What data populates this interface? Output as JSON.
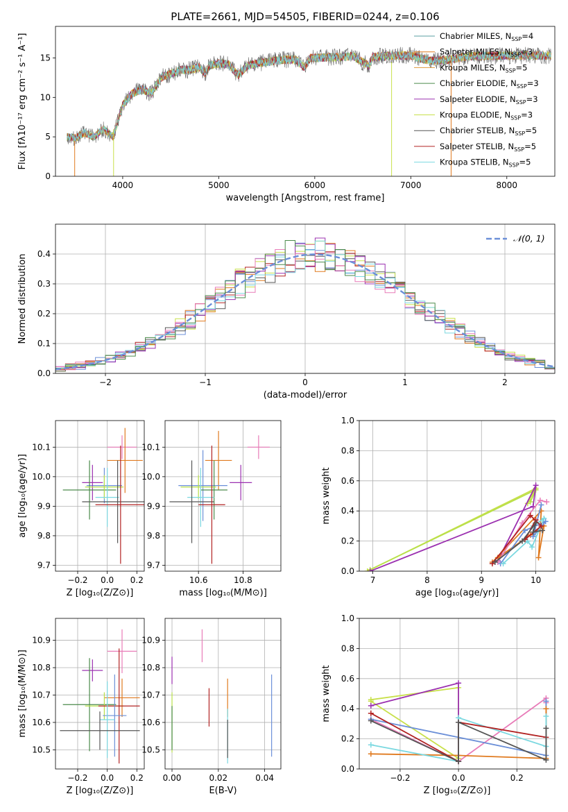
{
  "title": "PLATE=2661, MJD=54505, FIBERID=0244, z=0.106",
  "colors": {
    "Chabrier MILES": "#5a9fa0",
    "Salpeter MILES": "#e07a1f",
    "Kroupa MILES": "#e09a3a",
    "Chabrier ELODIE": "#4a8a4a",
    "Salpeter ELODIE": "#9b30b0",
    "Kroupa ELODIE": "#c8e04a",
    "Chabrier STELIB": "#555555",
    "Salpeter STELIB": "#b22222",
    "Kroupa STELIB": "#7ad8e0",
    "blue": "#6b8fd8",
    "pink": "#e87bb8",
    "orange": "#e07a1f",
    "purple": "#9b30b0",
    "lime": "#b8e04a",
    "red": "#b22222",
    "dark": "#555555",
    "cyan": "#7ad8e0",
    "green": "#4a8a4a",
    "yellowgreen": "#c8e04a"
  },
  "chart_data": [
    {
      "id": "spectrum",
      "type": "line",
      "xlabel": "wavelength [Angstrom, rest frame]",
      "ylabel": "Flux [fλ10⁻¹⁷ erg cm⁻² s⁻¹ A⁻¹]",
      "xlim": [
        3300,
        8500
      ],
      "ylim": [
        0,
        19
      ],
      "xticks": [
        4000,
        5000,
        6000,
        7000,
        8000
      ],
      "yticks": [
        0,
        5,
        10,
        15
      ],
      "grid": false,
      "legend_position": "top-right",
      "legend": [
        {
          "label": "Chabrier MILES, N",
          "sub": "SSP",
          "suffix": "=4",
          "color": "#5a9fa0"
        },
        {
          "label": "Salpeter MILES, N",
          "sub": "SSP",
          "suffix": "=3",
          "color": "#e07a1f"
        },
        {
          "label": "Kroupa MILES, N",
          "sub": "SSP",
          "suffix": "=5",
          "color": "#e09a3a"
        },
        {
          "label": "Chabrier ELODIE, N",
          "sub": "SSP",
          "suffix": "=3",
          "color": "#4a8a4a"
        },
        {
          "label": "Salpeter ELODIE, N",
          "sub": "SSP",
          "suffix": "=3",
          "color": "#9b30b0"
        },
        {
          "label": "Kroupa ELODIE, N",
          "sub": "SSP",
          "suffix": "=3",
          "color": "#c8e04a"
        },
        {
          "label": "Chabrier STELIB, N",
          "sub": "SSP",
          "suffix": "=5",
          "color": "#555555"
        },
        {
          "label": "Salpeter STELIB, N",
          "sub": "SSP",
          "suffix": "=5",
          "color": "#b22222"
        },
        {
          "label": "Kroupa STELIB, N",
          "sub": "SSP",
          "suffix": "=5",
          "color": "#7ad8e0"
        }
      ],
      "continuum": [
        [
          3420,
          5.0
        ],
        [
          3500,
          4.8
        ],
        [
          3600,
          5.5
        ],
        [
          3700,
          5.0
        ],
        [
          3800,
          6.0
        ],
        [
          3900,
          5.0
        ],
        [
          3950,
          7.0
        ],
        [
          4000,
          9.0
        ],
        [
          4100,
          10.5
        ],
        [
          4200,
          11.0
        ],
        [
          4300,
          10.5
        ],
        [
          4400,
          12.5
        ],
        [
          4500,
          13.0
        ],
        [
          4600,
          13.5
        ],
        [
          4700,
          13.5
        ],
        [
          4800,
          13.8
        ],
        [
          4860,
          13.0
        ],
        [
          4900,
          14.0
        ],
        [
          5000,
          14.3
        ],
        [
          5100,
          14.2
        ],
        [
          5200,
          12.8
        ],
        [
          5300,
          14.0
        ],
        [
          5400,
          14.3
        ],
        [
          5500,
          14.5
        ],
        [
          5600,
          14.7
        ],
        [
          5700,
          14.8
        ],
        [
          5800,
          14.8
        ],
        [
          5890,
          13.8
        ],
        [
          5950,
          15.0
        ],
        [
          6000,
          15.0
        ],
        [
          6200,
          15.1
        ],
        [
          6400,
          15.2
        ],
        [
          6563,
          14.0
        ],
        [
          6600,
          15.1
        ],
        [
          6800,
          15.3
        ],
        [
          7000,
          15.3
        ],
        [
          7200,
          14.6
        ],
        [
          7400,
          14.8
        ],
        [
          7600,
          15.2
        ],
        [
          8000,
          15.3
        ],
        [
          8200,
          15.3
        ],
        [
          8460,
          15.3
        ]
      ],
      "spikes": [
        {
          "x": 3500,
          "from": 4.5,
          "to": 0,
          "color": "#e07a1f"
        },
        {
          "x": 3905,
          "from": 6.0,
          "to": 0,
          "color": "#c8e04a"
        },
        {
          "x": 6800,
          "from": 14.5,
          "to": 0,
          "color": "#c8e04a"
        },
        {
          "x": 7420,
          "from": 15.0,
          "to": 0,
          "color": "#e07a1f"
        }
      ]
    },
    {
      "id": "residuals",
      "type": "step",
      "xlabel": "(data-model)/error",
      "ylabel": "Normed distribution",
      "xlim": [
        -2.5,
        2.5
      ],
      "ylim": [
        0,
        0.5
      ],
      "xticks": [
        -2,
        -1,
        0,
        1,
        2
      ],
      "yticks": [
        0.0,
        0.1,
        0.2,
        0.3,
        0.4
      ],
      "grid": true,
      "legend_position": "top-right",
      "reference_curve": {
        "label": "𝒩(0, 1)",
        "mean": 0.1,
        "sigma": 1.0,
        "color": "#6b8fd8"
      },
      "bin_width": 0.1
    },
    {
      "id": "age-vs-Z",
      "type": "errorbar",
      "xlabel": "Z [log₁₀(Z/Z⊙)]",
      "ylabel": "age  [log₁₀(age/yr)]",
      "xlim": [
        -0.35,
        0.25
      ],
      "ylim": [
        9.68,
        10.19
      ],
      "xticks": [
        -0.2,
        0.0,
        0.2
      ],
      "yticks": [
        9.7,
        9.8,
        9.9,
        10.0,
        10.1
      ],
      "grid": true,
      "points": [
        {
          "x": 0.1,
          "y": 10.1,
          "xerr": 0.1,
          "yerr": 0.04,
          "color": "#e87bb8"
        },
        {
          "x": 0.12,
          "y": 10.055,
          "xerr": 0.12,
          "yerr": 0.11,
          "color": "#e07a1f"
        },
        {
          "x": -0.02,
          "y": 9.97,
          "xerr": 0.12,
          "yerr": 0.06,
          "color": "#6b8fd8"
        },
        {
          "x": -0.1,
          "y": 9.98,
          "xerr": 0.07,
          "yerr": 0.06,
          "color": "#9b30b0"
        },
        {
          "x": -0.12,
          "y": 9.955,
          "xerr": 0.18,
          "yerr": 0.1,
          "color": "#4a8a4a"
        },
        {
          "x": -0.02,
          "y": 9.965,
          "xerr": 0.13,
          "yerr": 0.04,
          "color": "#b8e04a"
        },
        {
          "x": 0.0,
          "y": 9.93,
          "xerr": 0.08,
          "yerr": 0.1,
          "color": "#7ad8e0"
        },
        {
          "x": 0.07,
          "y": 9.915,
          "xerr": 0.24,
          "yerr": 0.14,
          "color": "#555555"
        },
        {
          "x": 0.09,
          "y": 9.905,
          "xerr": 0.17,
          "yerr": 0.2,
          "color": "#b22222"
        }
      ]
    },
    {
      "id": "age-vs-mass",
      "type": "errorbar",
      "xlabel": "mass [log₁₀(M/M⊙)]",
      "ylabel": "",
      "xlim": [
        10.45,
        10.97
      ],
      "ylim": [
        9.68,
        10.19
      ],
      "xticks": [
        10.6,
        10.8
      ],
      "yticks": [
        9.7,
        9.8,
        9.9,
        10.0,
        10.1
      ],
      "grid": true,
      "points": [
        {
          "x": 10.87,
          "y": 10.1,
          "xerr": 0.05,
          "yerr": 0.04,
          "color": "#e87bb8"
        },
        {
          "x": 10.69,
          "y": 10.055,
          "xerr": 0.06,
          "yerr": 0.1,
          "color": "#e07a1f"
        },
        {
          "x": 10.62,
          "y": 9.97,
          "xerr": 0.11,
          "yerr": 0.12,
          "color": "#6b8fd8"
        },
        {
          "x": 10.79,
          "y": 9.98,
          "xerr": 0.05,
          "yerr": 0.06,
          "color": "#9b30b0"
        },
        {
          "x": 10.67,
          "y": 9.955,
          "xerr": 0.06,
          "yerr": 0.1,
          "color": "#4a8a4a"
        },
        {
          "x": 10.6,
          "y": 9.965,
          "xerr": 0.08,
          "yerr": 0.04,
          "color": "#b8e04a"
        },
        {
          "x": 10.61,
          "y": 9.93,
          "xerr": 0.06,
          "yerr": 0.1,
          "color": "#7ad8e0"
        },
        {
          "x": 10.57,
          "y": 9.915,
          "xerr": 0.1,
          "yerr": 0.14,
          "color": "#555555"
        },
        {
          "x": 10.66,
          "y": 9.905,
          "xerr": 0.06,
          "yerr": 0.2,
          "color": "#b22222"
        }
      ]
    },
    {
      "id": "weight-vs-age",
      "type": "line",
      "xlabel": "age  [log₁₀(age/yr)]",
      "ylabel": "mass weight",
      "xlim": [
        6.75,
        10.35
      ],
      "ylim": [
        0,
        1
      ],
      "xticks": [
        7,
        8,
        9,
        10
      ],
      "yticks": [
        0.0,
        0.2,
        0.4,
        0.6,
        0.8,
        1.0
      ],
      "grid": true,
      "series": [
        {
          "color": "#c8e04a",
          "points": [
            [
              6.9,
              0.0
            ],
            [
              10.0,
              0.55
            ],
            [
              9.85,
              0.45
            ]
          ]
        },
        {
          "color": "#b8e04a",
          "points": [
            [
              6.95,
              0.01
            ],
            [
              10.0,
              0.54
            ],
            [
              9.9,
              0.46
            ]
          ]
        },
        {
          "color": "#9b30b0",
          "points": [
            [
              6.95,
              0.0
            ],
            [
              9.95,
              0.43
            ],
            [
              10.0,
              0.57
            ],
            [
              9.3,
              0.07
            ]
          ]
        },
        {
          "color": "#e07a1f",
          "points": [
            [
              9.3,
              0.09
            ],
            [
              9.9,
              0.24
            ],
            [
              10.15,
              0.3
            ],
            [
              10.05,
              0.09
            ],
            [
              10.1,
              0.4
            ],
            [
              9.2,
              0.06
            ]
          ]
        },
        {
          "color": "#6b8fd8",
          "points": [
            [
              9.35,
              0.05
            ],
            [
              9.8,
              0.27
            ],
            [
              10.18,
              0.33
            ],
            [
              9.95,
              0.23
            ],
            [
              10.1,
              0.44
            ]
          ]
        },
        {
          "color": "#e87bb8",
          "points": [
            [
              9.3,
              0.06
            ],
            [
              9.75,
              0.32
            ],
            [
              10.08,
              0.47
            ],
            [
              10.2,
              0.46
            ]
          ]
        },
        {
          "color": "#7ad8e0",
          "points": [
            [
              9.4,
              0.05
            ],
            [
              9.85,
              0.2
            ],
            [
              9.93,
              0.16
            ],
            [
              10.15,
              0.35
            ],
            [
              9.95,
              0.3
            ]
          ]
        },
        {
          "color": "#b22222",
          "points": [
            [
              9.2,
              0.05
            ],
            [
              9.9,
              0.37
            ],
            [
              10.1,
              0.3
            ],
            [
              9.8,
              0.21
            ],
            [
              10.0,
              0.34
            ]
          ]
        },
        {
          "color": "#555555",
          "points": [
            [
              9.25,
              0.06
            ],
            [
              9.75,
              0.2
            ],
            [
              10.0,
              0.32
            ],
            [
              9.95,
              0.26
            ],
            [
              10.12,
              0.27
            ]
          ]
        }
      ]
    },
    {
      "id": "mass-vs-Z",
      "type": "errorbar",
      "xlabel": "Z [log₁₀(Z/Z⊙)]",
      "ylabel": "mass [log₁₀(M/M⊙)]",
      "xlim": [
        -0.35,
        0.25
      ],
      "ylim": [
        10.43,
        10.98
      ],
      "xticks": [
        -0.2,
        0.0,
        0.2
      ],
      "yticks": [
        10.5,
        10.6,
        10.7,
        10.8,
        10.9
      ],
      "grid": true,
      "points": [
        {
          "x": 0.1,
          "y": 10.86,
          "xerr": 0.1,
          "yerr": 0.08,
          "color": "#e87bb8"
        },
        {
          "x": -0.1,
          "y": 10.79,
          "xerr": 0.07,
          "yerr": 0.04,
          "color": "#9b30b0"
        },
        {
          "x": 0.1,
          "y": 10.69,
          "xerr": 0.12,
          "yerr": 0.07,
          "color": "#e07a1f"
        },
        {
          "x": -0.12,
          "y": 10.665,
          "xerr": 0.18,
          "yerr": 0.17,
          "color": "#4a8a4a"
        },
        {
          "x": -0.02,
          "y": 10.66,
          "xerr": 0.13,
          "yerr": 0.05,
          "color": "#b8e04a"
        },
        {
          "x": 0.08,
          "y": 10.66,
          "xerr": 0.14,
          "yerr": 0.21,
          "color": "#b22222"
        },
        {
          "x": 0.05,
          "y": 10.625,
          "xerr": 0.08,
          "yerr": 0.15,
          "color": "#6b8fd8"
        },
        {
          "x": 0.0,
          "y": 10.61,
          "xerr": 0.05,
          "yerr": 0.14,
          "color": "#7ad8e0"
        },
        {
          "x": -0.05,
          "y": 10.57,
          "xerr": 0.27,
          "yerr": 0.07,
          "color": "#555555"
        }
      ]
    },
    {
      "id": "mass-vs-ebv",
      "type": "errorbar",
      "xlabel": "E(B-V)",
      "ylabel": "",
      "xlim": [
        -0.003,
        0.047
      ],
      "ylim": [
        10.43,
        10.98
      ],
      "xticks": [
        0.0,
        0.02,
        0.04
      ],
      "yticks": [
        10.5,
        10.6,
        10.7,
        10.8,
        10.9
      ],
      "grid": true,
      "points": [
        {
          "x": 0.013,
          "y": 10.88,
          "xerr": 0,
          "yerr": 0.06,
          "color": "#e87bb8"
        },
        {
          "x": 0.0,
          "y": 10.79,
          "xerr": 0,
          "yerr": 0.05,
          "color": "#9b30b0"
        },
        {
          "x": 0.0,
          "y": 10.6,
          "xerr": 0,
          "yerr": 0.11,
          "color": "#b8e04a"
        },
        {
          "x": 0.0,
          "y": 10.58,
          "xerr": 0,
          "yerr": 0.08,
          "color": "#4a8a4a"
        },
        {
          "x": 0.016,
          "y": 10.655,
          "xerr": 0,
          "yerr": 0.07,
          "color": "#b22222"
        },
        {
          "x": 0.024,
          "y": 10.69,
          "xerr": 0,
          "yerr": 0.07,
          "color": "#e07a1f"
        },
        {
          "x": 0.024,
          "y": 10.55,
          "xerr": 0,
          "yerr": 0.1,
          "color": "#7ad8e0"
        },
        {
          "x": 0.024,
          "y": 10.54,
          "xerr": 0,
          "yerr": 0.07,
          "color": "#555555"
        },
        {
          "x": 0.043,
          "y": 10.625,
          "xerr": 0,
          "yerr": 0.15,
          "color": "#6b8fd8"
        }
      ]
    },
    {
      "id": "weight-vs-Z",
      "type": "line",
      "xlabel": "Z [log₁₀(Z/Z⊙)]",
      "ylabel": "mass weight",
      "xlim": [
        -0.34,
        0.33
      ],
      "ylim": [
        0,
        1
      ],
      "xticks": [
        -0.2,
        0.0,
        0.2
      ],
      "yticks": [
        0.0,
        0.2,
        0.4,
        0.6,
        0.8,
        1.0
      ],
      "grid": true,
      "series": [
        {
          "color": "#c8e04a",
          "points": [
            [
              -0.3,
              0.46
            ],
            [
              0.0,
              0.54
            ],
            [
              0.0,
              0.07
            ],
            [
              -0.3,
              0.45
            ]
          ]
        },
        {
          "color": "#9b30b0",
          "points": [
            [
              -0.3,
              0.42
            ],
            [
              0.0,
              0.57
            ],
            [
              0.0,
              0.05
            ]
          ]
        },
        {
          "color": "#e87bb8",
          "points": [
            [
              -0.3,
              0.33
            ],
            [
              0.0,
              0.05
            ],
            [
              0.3,
              0.47
            ],
            [
              0.3,
              0.44
            ]
          ]
        },
        {
          "color": "#6b8fd8",
          "points": [
            [
              -0.3,
              0.33
            ],
            [
              0.3,
              0.09
            ],
            [
              0.3,
              0.45
            ]
          ]
        },
        {
          "color": "#e07a1f",
          "points": [
            [
              -0.3,
              0.1
            ],
            [
              0.0,
              0.09
            ],
            [
              0.3,
              0.07
            ],
            [
              0.3,
              0.4
            ]
          ]
        },
        {
          "color": "#7ad8e0",
          "points": [
            [
              -0.3,
              0.16
            ],
            [
              0.0,
              0.05
            ],
            [
              0.0,
              0.34
            ],
            [
              0.3,
              0.15
            ],
            [
              0.3,
              0.35
            ]
          ]
        },
        {
          "color": "#b22222",
          "points": [
            [
              -0.3,
              0.37
            ],
            [
              0.0,
              0.05
            ],
            [
              0.0,
              0.31
            ],
            [
              0.3,
              0.21
            ]
          ]
        },
        {
          "color": "#555555",
          "points": [
            [
              -0.3,
              0.32
            ],
            [
              0.0,
              0.05
            ],
            [
              0.0,
              0.31
            ],
            [
              0.3,
              0.06
            ],
            [
              0.3,
              0.27
            ]
          ]
        }
      ]
    }
  ]
}
